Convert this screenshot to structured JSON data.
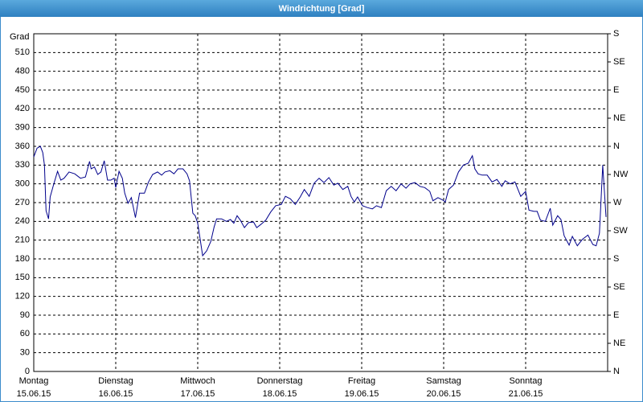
{
  "chart_data": {
    "type": "line",
    "title": "Windrichtung [Grad]",
    "y_label": "Grad",
    "x": [
      0,
      0.04,
      0.08,
      0.11,
      0.13,
      0.15,
      0.18,
      0.2,
      0.24,
      0.29,
      0.33,
      0.37,
      0.43,
      0.5,
      0.57,
      0.63,
      0.68,
      0.7,
      0.74,
      0.78,
      0.82,
      0.86,
      0.9,
      0.94,
      0.98,
      1.0,
      1.04,
      1.08,
      1.11,
      1.15,
      1.19,
      1.24,
      1.29,
      1.35,
      1.4,
      1.45,
      1.51,
      1.56,
      1.6,
      1.66,
      1.71,
      1.76,
      1.82,
      1.87,
      1.9,
      1.94,
      1.97,
      2.0,
      2.03,
      2.06,
      2.11,
      2.16,
      2.2,
      2.23,
      2.29,
      2.35,
      2.4,
      2.44,
      2.48,
      2.52,
      2.57,
      2.62,
      2.68,
      2.72,
      2.77,
      2.83,
      2.89,
      2.95,
      3.02,
      3.07,
      3.13,
      3.19,
      3.25,
      3.3,
      3.36,
      3.42,
      3.48,
      3.54,
      3.6,
      3.66,
      3.71,
      3.77,
      3.83,
      3.87,
      3.91,
      3.95,
      4.01,
      4.07,
      4.13,
      4.18,
      4.24,
      4.3,
      4.36,
      4.42,
      4.48,
      4.54,
      4.59,
      4.65,
      4.71,
      4.77,
      4.83,
      4.87,
      4.93,
      4.99,
      5.02,
      5.06,
      5.12,
      5.18,
      5.24,
      5.3,
      5.35,
      5.38,
      5.42,
      5.47,
      5.53,
      5.59,
      5.65,
      5.71,
      5.75,
      5.81,
      5.87,
      5.9,
      5.94,
      6.0,
      6.04,
      6.1,
      6.14,
      6.18,
      6.24,
      6.3,
      6.33,
      6.39,
      6.43,
      6.47,
      6.53,
      6.57,
      6.63,
      6.69,
      6.76,
      6.82,
      6.86,
      6.9,
      6.94,
      6.98
    ],
    "values": [
      343,
      357,
      360,
      350,
      330,
      257,
      244,
      279,
      298,
      320,
      306,
      309,
      319,
      316,
      309,
      311,
      336,
      324,
      327,
      315,
      319,
      337,
      306,
      306,
      309,
      294,
      320,
      309,
      285,
      269,
      278,
      246,
      285,
      285,
      303,
      315,
      319,
      314,
      319,
      321,
      316,
      324,
      324,
      316,
      305,
      253,
      249,
      237,
      211,
      185,
      193,
      208,
      231,
      244,
      244,
      240,
      243,
      237,
      249,
      242,
      230,
      238,
      239,
      230,
      235,
      242,
      255,
      265,
      267,
      280,
      276,
      267,
      279,
      291,
      280,
      301,
      309,
      302,
      310,
      298,
      301,
      291,
      296,
      280,
      271,
      279,
      265,
      262,
      260,
      265,
      262,
      289,
      296,
      289,
      300,
      293,
      300,
      302,
      296,
      294,
      288,
      273,
      278,
      274,
      271,
      291,
      298,
      319,
      330,
      333,
      345,
      324,
      316,
      314,
      314,
      303,
      307,
      296,
      305,
      300,
      303,
      293,
      280,
      288,
      258,
      256,
      256,
      242,
      240,
      261,
      234,
      249,
      243,
      217,
      202,
      216,
      201,
      211,
      218,
      203,
      201,
      221,
      330,
      247
    ],
    "color": "#00008b",
    "xlim": [
      0,
      7
    ],
    "xticks": [
      {
        "value": 0,
        "label": "Montag",
        "date": "15.06.15"
      },
      {
        "value": 1,
        "label": "Dienstag",
        "date": "16.06.15"
      },
      {
        "value": 2,
        "label": "Mittwoch",
        "date": "17.06.15"
      },
      {
        "value": 3,
        "label": "Donnerstag",
        "date": "18.06.15"
      },
      {
        "value": 4,
        "label": "Freitag",
        "date": "19.06.15"
      },
      {
        "value": 5,
        "label": "Samstag",
        "date": "20.06.15"
      },
      {
        "value": 6,
        "label": "Sonntag",
        "date": "21.06.15"
      }
    ],
    "ylim": [
      0,
      540
    ],
    "yticks": [
      0,
      30,
      60,
      90,
      120,
      150,
      180,
      210,
      240,
      270,
      300,
      330,
      360,
      390,
      420,
      450,
      480,
      510
    ],
    "y2lim": [
      0,
      540
    ],
    "y2ticks": [
      {
        "value": 0,
        "label": "N"
      },
      {
        "value": 45,
        "label": "NE"
      },
      {
        "value": 90,
        "label": "E"
      },
      {
        "value": 135,
        "label": "SE"
      },
      {
        "value": 180,
        "label": "S"
      },
      {
        "value": 225,
        "label": "SW"
      },
      {
        "value": 270,
        "label": "W"
      },
      {
        "value": 315,
        "label": "NW"
      },
      {
        "value": 360,
        "label": "N"
      },
      {
        "value": 405,
        "label": "NE"
      },
      {
        "value": 450,
        "label": "E"
      },
      {
        "value": 495,
        "label": "SE"
      },
      {
        "value": 540,
        "label": "S"
      }
    ],
    "grid": true
  }
}
